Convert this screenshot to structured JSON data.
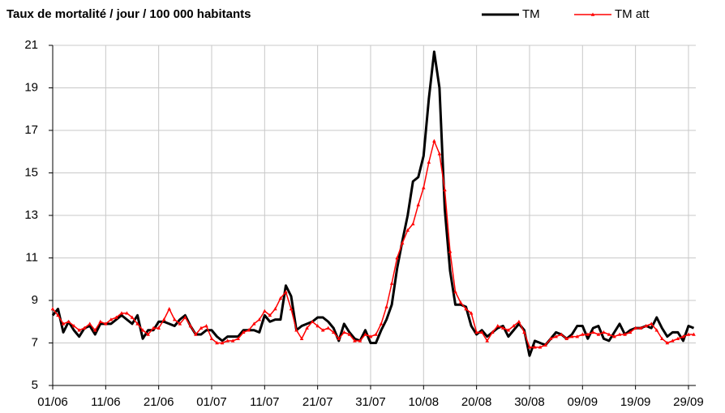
{
  "chart_data": {
    "type": "line",
    "title": "Taux de mortalité / jour / 100 000 habitants",
    "categories": [
      "01/06",
      null,
      null,
      null,
      null,
      null,
      null,
      null,
      null,
      null,
      "11/06",
      null,
      null,
      null,
      null,
      null,
      null,
      null,
      null,
      null,
      "21/06",
      null,
      null,
      null,
      null,
      null,
      null,
      null,
      null,
      null,
      "01/07",
      null,
      null,
      null,
      null,
      null,
      null,
      null,
      null,
      null,
      "11/07",
      null,
      null,
      null,
      null,
      null,
      null,
      null,
      null,
      null,
      "21/07",
      null,
      null,
      null,
      null,
      null,
      null,
      null,
      null,
      null,
      "31/07",
      null,
      null,
      null,
      null,
      null,
      null,
      null,
      null,
      null,
      "10/08",
      null,
      null,
      null,
      null,
      null,
      null,
      null,
      null,
      null,
      "20/08",
      null,
      null,
      null,
      null,
      null,
      null,
      null,
      null,
      null,
      "30/08",
      null,
      null,
      null,
      null,
      null,
      null,
      null,
      null,
      null,
      "09/09",
      null,
      null,
      null,
      null,
      null,
      null,
      null,
      null,
      null,
      "19/09",
      null,
      null,
      null,
      null,
      null,
      null,
      null,
      null,
      null,
      "29/09",
      null
    ],
    "series": [
      {
        "name": "TM",
        "color": "#000000",
        "values": [
          8.3,
          8.6,
          7.5,
          8.0,
          7.6,
          7.3,
          7.7,
          7.8,
          7.4,
          7.9,
          7.9,
          7.9,
          8.1,
          8.3,
          8.1,
          7.9,
          8.3,
          7.2,
          7.6,
          7.6,
          8.0,
          8.0,
          7.9,
          7.8,
          8.1,
          8.3,
          7.8,
          7.4,
          7.4,
          7.6,
          7.6,
          7.3,
          7.1,
          7.3,
          7.3,
          7.3,
          7.6,
          7.6,
          7.6,
          7.5,
          8.3,
          8.0,
          8.1,
          8.1,
          9.7,
          9.2,
          7.6,
          7.8,
          7.9,
          8.0,
          8.2,
          8.2,
          8.0,
          7.7,
          7.1,
          7.9,
          7.5,
          7.2,
          7.1,
          7.6,
          7.0,
          7.0,
          7.6,
          8.1,
          8.8,
          10.5,
          11.8,
          13.0,
          14.6,
          14.8,
          15.8,
          18.5,
          20.7,
          19.0,
          13.3,
          10.4,
          8.8,
          8.8,
          8.7,
          7.8,
          7.4,
          7.6,
          7.3,
          7.5,
          7.7,
          7.8,
          7.3,
          7.6,
          7.9,
          7.6,
          6.4,
          7.1,
          7.0,
          6.9,
          7.2,
          7.5,
          7.4,
          7.2,
          7.4,
          7.8,
          7.8,
          7.2,
          7.7,
          7.8,
          7.2,
          7.1,
          7.5,
          7.9,
          7.4,
          7.6,
          7.7,
          7.7,
          7.8,
          7.7,
          8.2,
          7.7,
          7.3,
          7.5,
          7.5,
          7.1,
          7.8,
          7.7
        ]
      },
      {
        "name": "TM att",
        "color": "#ff0000",
        "values": [
          8.6,
          8.3,
          7.9,
          8.0,
          7.8,
          7.6,
          7.7,
          7.9,
          7.6,
          8.0,
          7.9,
          8.1,
          8.2,
          8.4,
          8.4,
          8.2,
          7.9,
          7.6,
          7.4,
          7.7,
          7.7,
          8.1,
          8.6,
          8.1,
          7.9,
          8.2,
          7.8,
          7.4,
          7.7,
          7.8,
          7.2,
          7.0,
          7.0,
          7.1,
          7.1,
          7.2,
          7.5,
          7.6,
          7.9,
          8.1,
          8.5,
          8.3,
          8.6,
          9.1,
          9.4,
          8.6,
          7.6,
          7.2,
          7.7,
          8.0,
          7.8,
          7.6,
          7.7,
          7.5,
          7.2,
          7.5,
          7.4,
          7.1,
          7.1,
          7.4,
          7.3,
          7.4,
          7.9,
          8.7,
          9.8,
          11.0,
          11.7,
          12.3,
          12.6,
          13.5,
          14.3,
          15.5,
          16.5,
          15.9,
          14.2,
          11.3,
          9.4,
          8.9,
          8.6,
          8.4,
          7.5,
          7.5,
          7.1,
          7.5,
          7.8,
          7.7,
          7.6,
          7.8,
          8.0,
          7.5,
          6.8,
          6.8,
          6.8,
          6.9,
          7.2,
          7.3,
          7.4,
          7.2,
          7.3,
          7.3,
          7.4,
          7.4,
          7.5,
          7.4,
          7.5,
          7.4,
          7.3,
          7.4,
          7.4,
          7.5,
          7.7,
          7.7,
          7.8,
          7.9,
          7.6,
          7.2,
          7.0,
          7.1,
          7.2,
          7.3,
          7.4,
          7.4
        ]
      }
    ],
    "ylim": [
      5,
      21
    ],
    "yticks": [
      5,
      7,
      9,
      11,
      13,
      15,
      17,
      19,
      21
    ],
    "grid": true,
    "legend": "top-right"
  }
}
